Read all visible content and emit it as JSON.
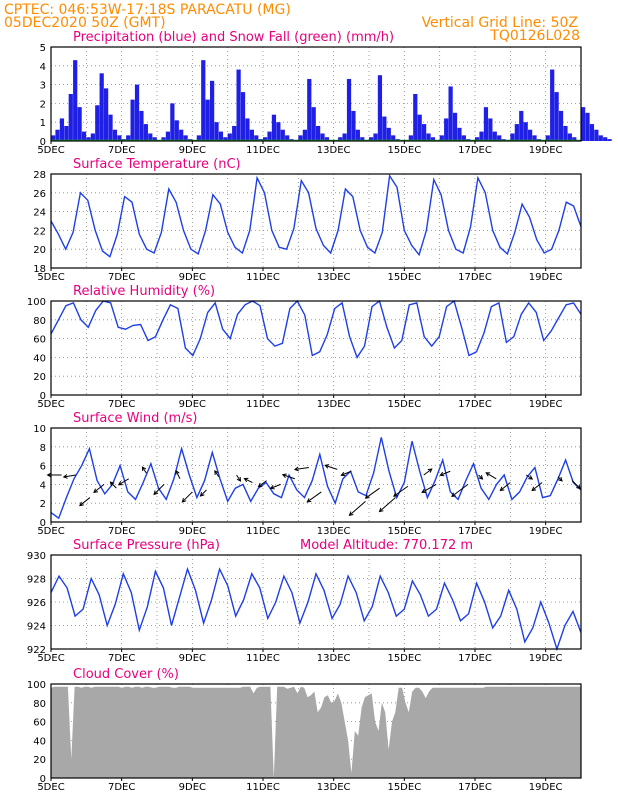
{
  "header": {
    "line1_left": "CPTEC:   046:53W-17:18S   PARACATU (MG)",
    "line2_left": "05DEC2020 50Z (GMT)",
    "line2_right": "Vertical Grid Line: 50Z",
    "line3_right": "TQ0126L028"
  },
  "x_axis": {
    "ticks": [
      "5DEC",
      "7DEC",
      "9DEC",
      "11DEC",
      "13DEC",
      "15DEC",
      "17DEC",
      "19DEC"
    ],
    "days_start": 5,
    "days_end": 20
  },
  "chart_data": [
    {
      "id": "precip",
      "type": "bar",
      "title": "Precipitation (blue) and Snow Fall (green) (mm/h)",
      "ylim": [
        0,
        5
      ],
      "yticks": [
        "0",
        "1",
        "2",
        "3",
        "4",
        "5"
      ],
      "series": [
        {
          "color": "#1f1fe6",
          "values_by_day": {
            "5": [
              0.3,
              0.6,
              1.2,
              0.8,
              2.5,
              4.3,
              1.8,
              0.5
            ],
            "6": [
              0.2,
              0.4,
              1.9,
              3.6,
              2.8,
              1.4,
              0.6,
              0.3
            ],
            "7": [
              0.1,
              0.3,
              2.2,
              3.0,
              1.6,
              0.9,
              0.4,
              0.2
            ],
            "8": [
              0.0,
              0.2,
              0.5,
              2.0,
              1.1,
              0.6,
              0.3,
              0.1
            ],
            "9": [
              0.0,
              0.3,
              4.3,
              2.2,
              3.2,
              1.0,
              0.5,
              0.2
            ],
            "10": [
              0.4,
              0.8,
              3.8,
              2.6,
              1.2,
              0.6,
              0.3,
              0.1
            ],
            "11": [
              0.2,
              0.5,
              1.4,
              1.0,
              0.6,
              0.3,
              0.1,
              0.0
            ],
            "12": [
              0.3,
              0.6,
              3.3,
              1.8,
              0.8,
              0.4,
              0.2,
              0.0
            ],
            "13": [
              0.0,
              0.2,
              0.4,
              3.3,
              1.6,
              0.6,
              0.2,
              0.0
            ],
            "14": [
              0.2,
              0.4,
              3.5,
              1.3,
              0.7,
              0.3,
              0.1,
              0.0
            ],
            "15": [
              0.0,
              0.3,
              2.5,
              1.4,
              0.9,
              0.4,
              0.2,
              0.0
            ],
            "16": [
              0.3,
              1.2,
              2.9,
              1.5,
              0.7,
              0.3,
              0.1,
              0.0
            ],
            "17": [
              0.2,
              0.5,
              1.8,
              1.2,
              0.5,
              0.3,
              0.1,
              0.0
            ],
            "18": [
              0.4,
              0.9,
              1.6,
              1.0,
              0.6,
              0.3,
              0.1,
              0.0
            ],
            "19": [
              0.3,
              3.8,
              2.6,
              1.6,
              0.8,
              0.4,
              0.2,
              0.0
            ],
            "20": [
              1.8,
              1.5,
              0.9,
              0.6,
              0.3,
              0.2,
              0.1,
              0.0
            ]
          }
        },
        {
          "color": "#22aa22",
          "values_by_day": {}
        }
      ]
    },
    {
      "id": "temp",
      "type": "line",
      "title": "Surface Temperature (nC)",
      "ylim": [
        18,
        28
      ],
      "yticks": [
        "18",
        "20",
        "22",
        "24",
        "26",
        "28"
      ],
      "series": [
        {
          "color": "#1f3fe6",
          "values": [
            23.0,
            21.6,
            20.0,
            21.8,
            26.0,
            25.2,
            22.0,
            19.8,
            19.2,
            21.6,
            25.6,
            25.0,
            21.6,
            20.0,
            19.6,
            21.8,
            26.4,
            25.0,
            22.0,
            20.0,
            19.5,
            22.0,
            25.8,
            24.8,
            21.8,
            20.2,
            19.6,
            22.0,
            27.6,
            26.0,
            22.0,
            20.2,
            20.0,
            22.2,
            27.3,
            26.0,
            22.2,
            20.4,
            19.6,
            22.0,
            26.4,
            25.6,
            22.0,
            20.2,
            19.6,
            21.8,
            27.8,
            26.6,
            22.0,
            20.4,
            19.4,
            22.0,
            27.4,
            25.8,
            22.0,
            20.0,
            19.6,
            22.4,
            27.6,
            26.0,
            22.0,
            20.2,
            19.5,
            21.8,
            24.8,
            23.4,
            21.0,
            19.6,
            20.0,
            22.0,
            25.0,
            24.6,
            22.4
          ]
        }
      ]
    },
    {
      "id": "rh",
      "type": "line",
      "title": "Relative Humidity (%)",
      "ylim": [
        0,
        100
      ],
      "yticks": [
        "0",
        "20",
        "40",
        "60",
        "80",
        "100"
      ],
      "series": [
        {
          "color": "#1f3fe6",
          "values": [
            65,
            80,
            95,
            98,
            80,
            72,
            90,
            100,
            98,
            72,
            70,
            74,
            75,
            58,
            62,
            80,
            96,
            92,
            50,
            42,
            60,
            88,
            98,
            70,
            60,
            86,
            96,
            100,
            95,
            60,
            52,
            55,
            92,
            100,
            85,
            42,
            46,
            64,
            92,
            98,
            62,
            40,
            52,
            94,
            100,
            72,
            50,
            58,
            96,
            98,
            62,
            52,
            62,
            94,
            100,
            72,
            42,
            46,
            66,
            94,
            98,
            56,
            62,
            86,
            98,
            88,
            58,
            68,
            82,
            96,
            98,
            86
          ]
        }
      ]
    },
    {
      "id": "wind",
      "type": "line",
      "title": "Surface Wind (m/s)",
      "ylim": [
        0,
        10
      ],
      "yticks": [
        "0",
        "2",
        "4",
        "6",
        "8",
        "10"
      ],
      "series": [
        {
          "color": "#1f3fe6",
          "values": [
            1.0,
            0.4,
            2.6,
            4.6,
            6.0,
            7.8,
            4.4,
            3.0,
            4.0,
            6.0,
            3.2,
            2.4,
            4.2,
            6.2,
            3.6,
            2.4,
            4.6,
            7.8,
            5.0,
            2.6,
            4.4,
            7.4,
            4.6,
            2.2,
            3.6,
            4.0,
            2.2,
            3.6,
            4.2,
            3.0,
            2.6,
            5.0,
            3.4,
            2.6,
            4.4,
            7.2,
            3.8,
            2.0,
            4.6,
            5.4,
            3.2,
            2.8,
            5.2,
            9.0,
            5.4,
            2.6,
            4.2,
            8.6,
            5.4,
            2.6,
            4.4,
            6.6,
            3.2,
            2.4,
            4.4,
            6.2,
            3.6,
            2.4,
            4.0,
            5.0,
            2.4,
            3.2,
            4.8,
            5.8,
            2.6,
            2.8,
            4.6,
            6.6,
            4.2,
            3.4
          ]
        }
      ]
    },
    {
      "id": "pres",
      "type": "line",
      "title": "Surface Pressure (hPa)",
      "annotation": "Model Altitude: 770.172 m",
      "ylim": [
        922,
        930
      ],
      "yticks": [
        "922",
        "924",
        "926",
        "928",
        "930"
      ],
      "series": [
        {
          "color": "#1f3fe6",
          "values": [
            926.8,
            928.2,
            927.2,
            924.8,
            925.4,
            928.0,
            926.6,
            924.0,
            925.8,
            928.4,
            926.8,
            923.6,
            925.6,
            928.6,
            927.2,
            924.0,
            926.4,
            928.8,
            927.0,
            924.2,
            926.2,
            928.8,
            927.4,
            924.8,
            926.2,
            928.4,
            927.2,
            924.6,
            926.0,
            928.2,
            926.8,
            924.2,
            926.0,
            928.4,
            927.0,
            924.6,
            925.8,
            928.2,
            926.8,
            924.4,
            925.6,
            928.2,
            926.8,
            924.8,
            925.4,
            927.8,
            926.6,
            924.8,
            925.4,
            927.6,
            926.2,
            924.4,
            925.0,
            927.6,
            926.0,
            923.8,
            924.8,
            927.0,
            925.4,
            922.6,
            923.8,
            926.0,
            924.2,
            922.0,
            924.0,
            925.2,
            923.4
          ]
        }
      ]
    },
    {
      "id": "cloud",
      "type": "area",
      "title": "Cloud Cover (%)",
      "ylim": [
        0,
        100
      ],
      "yticks": [
        "0",
        "20",
        "40",
        "60",
        "80",
        "100"
      ],
      "series": [
        {
          "color": "#a8a8a8",
          "values": [
            96,
            97,
            97,
            97,
            97,
            97,
            20,
            97,
            97,
            96,
            97,
            97,
            96,
            97,
            97,
            97,
            97,
            97,
            97,
            97,
            97,
            96,
            97,
            97,
            96,
            97,
            97,
            96,
            97,
            97,
            96,
            96,
            97,
            97,
            97,
            97,
            96,
            96,
            97,
            97,
            97,
            97,
            96,
            96,
            96,
            96,
            96,
            96,
            96,
            96,
            96,
            96,
            96,
            96,
            96,
            96,
            96,
            97,
            97,
            97,
            90,
            96,
            97,
            97,
            97,
            97,
            0,
            97,
            97,
            97,
            95,
            96,
            97,
            90,
            97,
            96,
            86,
            88,
            92,
            70,
            75,
            86,
            88,
            80,
            82,
            90,
            80,
            60,
            40,
            5,
            50,
            45,
            75,
            86,
            88,
            90,
            60,
            50,
            80,
            70,
            30,
            60,
            70,
            96,
            96,
            80,
            70,
            92,
            96,
            96,
            92,
            85,
            92,
            96,
            96,
            96,
            96,
            96,
            96,
            96,
            96,
            96,
            96,
            96,
            96,
            96,
            96,
            96,
            96,
            97,
            97,
            97,
            97,
            97,
            97,
            97,
            97,
            97,
            97,
            97,
            97,
            97,
            97,
            97,
            97,
            97,
            97,
            97,
            97,
            97,
            97,
            97,
            97,
            97,
            97,
            97,
            97,
            97
          ]
        }
      ]
    }
  ],
  "wind_arrows": [
    {
      "day": 5.3,
      "y": 5.0,
      "dx": -14,
      "dy": 0
    },
    {
      "day": 5.7,
      "y": 5.0,
      "dx": -12,
      "dy": 2
    },
    {
      "day": 6.1,
      "y": 2.6,
      "dx": -10,
      "dy": 8
    },
    {
      "day": 6.5,
      "y": 4.0,
      "dx": -10,
      "dy": 8
    },
    {
      "day": 6.85,
      "y": 3.6,
      "dx": -6,
      "dy": -6
    },
    {
      "day": 7.2,
      "y": 4.6,
      "dx": -10,
      "dy": 6
    },
    {
      "day": 7.7,
      "y": 5.2,
      "dx": -4,
      "dy": -6
    },
    {
      "day": 8.2,
      "y": 4.0,
      "dx": -10,
      "dy": 10
    },
    {
      "day": 8.65,
      "y": 4.6,
      "dx": -4,
      "dy": -8
    },
    {
      "day": 9.0,
      "y": 3.2,
      "dx": -10,
      "dy": 10
    },
    {
      "day": 9.4,
      "y": 3.4,
      "dx": -6,
      "dy": 6
    },
    {
      "day": 9.75,
      "y": 4.8,
      "dx": -4,
      "dy": -6
    },
    {
      "day": 10.25,
      "y": 5.0,
      "dx": 4,
      "dy": 6
    },
    {
      "day": 10.7,
      "y": 4.2,
      "dx": -8,
      "dy": -4
    },
    {
      "day": 11.1,
      "y": 4.4,
      "dx": -8,
      "dy": 6
    },
    {
      "day": 11.5,
      "y": 4.0,
      "dx": -10,
      "dy": 4
    },
    {
      "day": 11.9,
      "y": 4.6,
      "dx": -12,
      "dy": -4
    },
    {
      "day": 12.3,
      "y": 5.8,
      "dx": -14,
      "dy": 2
    },
    {
      "day": 12.65,
      "y": 3.2,
      "dx": -14,
      "dy": 10
    },
    {
      "day": 13.1,
      "y": 5.6,
      "dx": -12,
      "dy": -4
    },
    {
      "day": 13.5,
      "y": 5.4,
      "dx": -10,
      "dy": 4
    },
    {
      "day": 13.9,
      "y": 2.2,
      "dx": -16,
      "dy": 14
    },
    {
      "day": 14.3,
      "y": 3.6,
      "dx": -14,
      "dy": 10
    },
    {
      "day": 14.75,
      "y": 2.6,
      "dx": -16,
      "dy": 14
    },
    {
      "day": 15.1,
      "y": 3.8,
      "dx": -14,
      "dy": 10
    },
    {
      "day": 15.55,
      "y": 5.0,
      "dx": 8,
      "dy": -6
    },
    {
      "day": 15.9,
      "y": 4.0,
      "dx": -14,
      "dy": 8
    },
    {
      "day": 16.3,
      "y": 5.4,
      "dx": -10,
      "dy": 4
    },
    {
      "day": 16.8,
      "y": 4.0,
      "dx": -16,
      "dy": 12
    },
    {
      "day": 17.1,
      "y": 5.0,
      "dx": 4,
      "dy": 4
    },
    {
      "day": 17.6,
      "y": 4.6,
      "dx": -10,
      "dy": -6
    },
    {
      "day": 18.0,
      "y": 4.2,
      "dx": -10,
      "dy": 8
    },
    {
      "day": 18.45,
      "y": 5.0,
      "dx": 6,
      "dy": 4
    },
    {
      "day": 18.9,
      "y": 4.2,
      "dx": -10,
      "dy": 8
    },
    {
      "day": 19.35,
      "y": 4.8,
      "dx": 4,
      "dy": 4
    },
    {
      "day": 19.75,
      "y": 4.4,
      "dx": 8,
      "dy": 8
    }
  ]
}
